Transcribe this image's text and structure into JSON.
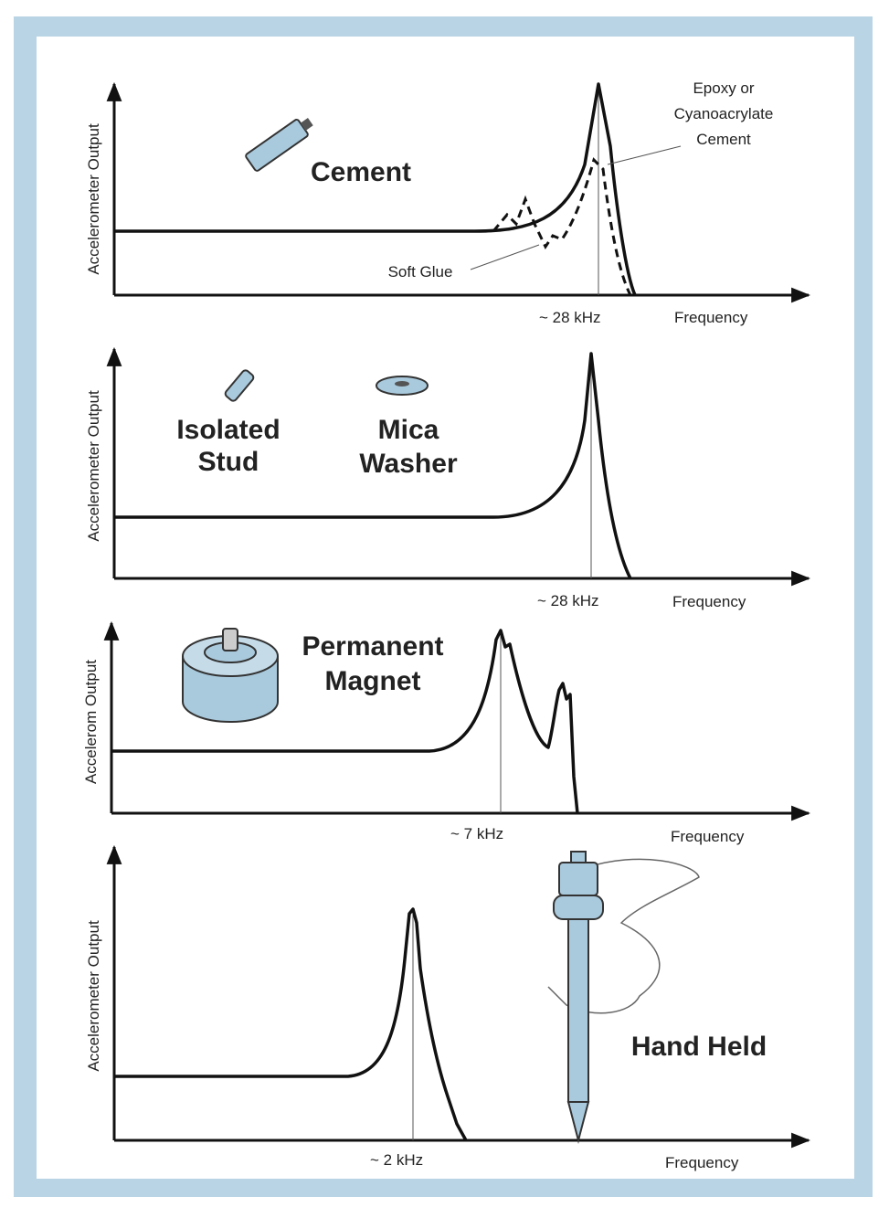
{
  "panels": [
    {
      "y_label": "Accelerometer Output",
      "x_label": "Frequency",
      "marker": "~ 28 kHz",
      "labels": [
        "Cement"
      ],
      "annotations": [
        [
          "Epoxy or",
          "Cyanoacrylate",
          "Cement"
        ],
        [
          "Soft Glue"
        ]
      ]
    },
    {
      "y_label": "Accelerometer Output",
      "x_label": "Frequency",
      "marker": "~ 28 kHz",
      "labels": [
        [
          "Isolated",
          "Stud"
        ],
        [
          "Mica",
          "Washer"
        ]
      ]
    },
    {
      "y_label": "Accelerom Output",
      "x_label": "Frequency",
      "marker": "~ 7 kHz",
      "labels": [
        [
          "Permanent",
          "Magnet"
        ]
      ]
    },
    {
      "y_label": "Accelerometer Output",
      "x_label": "Frequency",
      "marker": "~ 2 kHz",
      "labels": [
        "Hand Held"
      ]
    }
  ]
}
